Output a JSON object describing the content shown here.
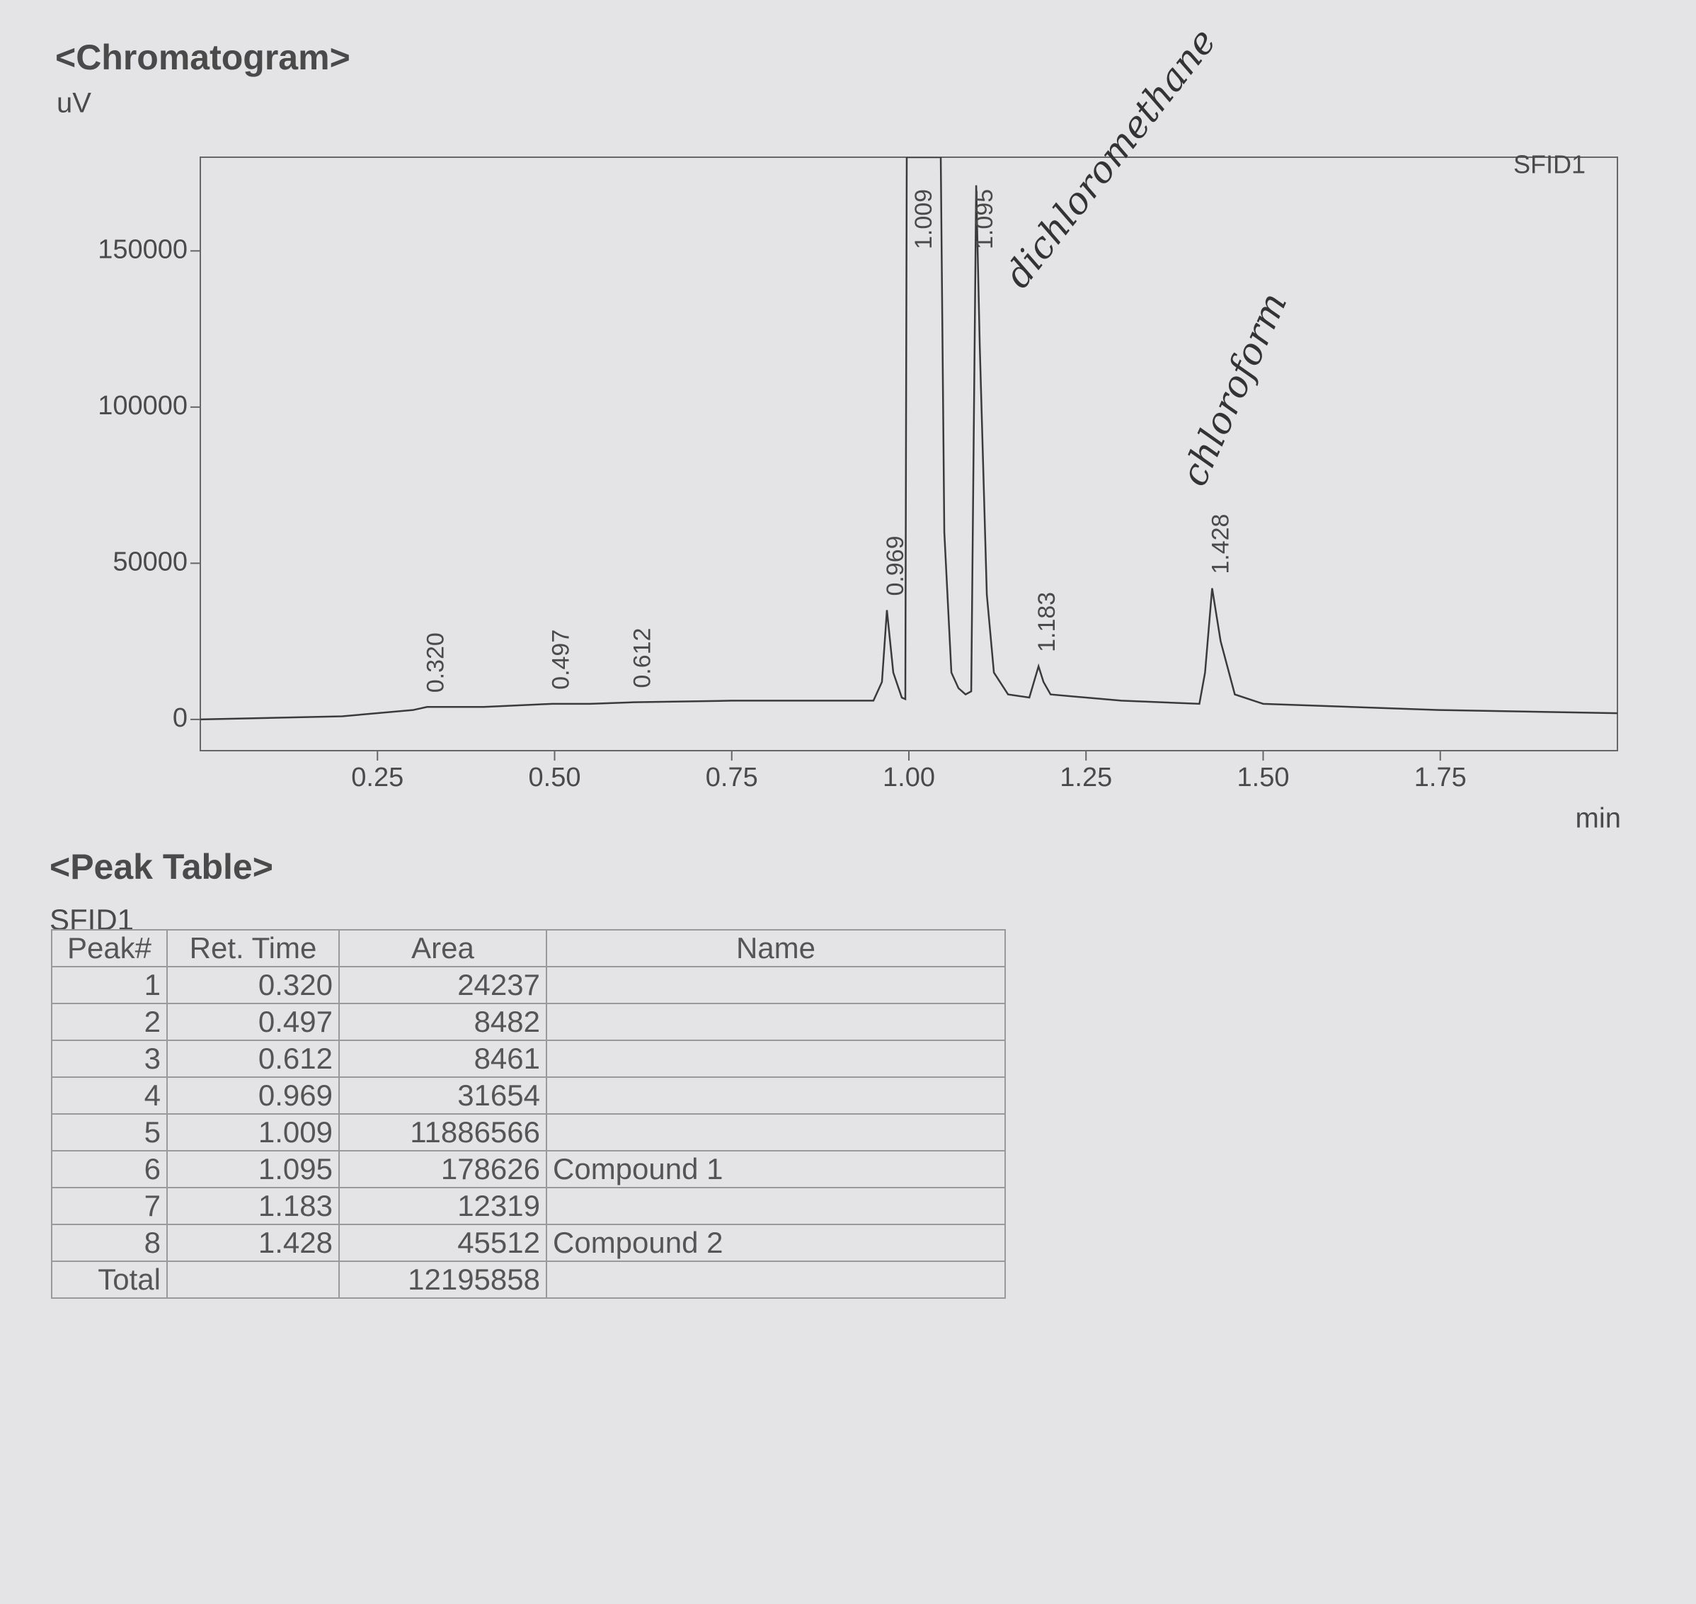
{
  "chart_data": {
    "type": "line",
    "title": "<Chromatogram>",
    "y_label": "uV",
    "x_label": "min",
    "x": [
      0,
      0.2,
      0.3,
      0.32,
      0.4,
      0.497,
      0.55,
      0.612,
      0.75,
      0.95,
      0.962,
      0.969,
      0.978,
      0.99,
      0.995,
      0.997,
      1.045,
      1.05,
      1.06,
      1.07,
      1.08,
      1.088,
      1.095,
      1.1,
      1.11,
      1.12,
      1.14,
      1.17,
      1.183,
      1.19,
      1.2,
      1.3,
      1.41,
      1.418,
      1.428,
      1.44,
      1.46,
      1.5,
      1.75,
      2.0
    ],
    "series": [
      {
        "name": "SFID1",
        "color": "#3a3a3a",
        "values": [
          0,
          1000,
          3000,
          4000,
          4000,
          5000,
          5000,
          5500,
          6000,
          6000,
          12000,
          35000,
          15000,
          7000,
          6500,
          180000,
          180000,
          60000,
          15000,
          10000,
          8000,
          9000,
          171000,
          120000,
          40000,
          15000,
          8000,
          7000,
          17000,
          12000,
          8000,
          6000,
          5000,
          15000,
          42000,
          25000,
          8000,
          5000,
          3000,
          2000
        ]
      }
    ],
    "xlim": [
      0,
      2.0
    ],
    "ylim": [
      -10000,
      180000
    ],
    "xticks": [
      0.25,
      {
        "value": 0.5,
        "label": "0.50"
      },
      0.75,
      {
        "value": 1.0,
        "label": "1.00"
      },
      1.25,
      {
        "value": 1.5,
        "label": "1.50"
      },
      1.75
    ],
    "yticks": [
      0,
      50000,
      100000,
      150000
    ],
    "peak_labels": [
      {
        "label": "0.320",
        "x": 0.32
      },
      {
        "label": "0.497",
        "x": 0.497
      },
      {
        "label": "0.612",
        "x": 0.612
      },
      {
        "label": "0.969",
        "x": 0.969
      },
      {
        "label": "1.009",
        "x": 1.009
      },
      {
        "label": "1.095",
        "x": 1.095
      },
      {
        "label": "1.183",
        "x": 1.183
      },
      {
        "label": "1.428",
        "x": 1.428
      }
    ],
    "handwritten": [
      "dichloromethane",
      "chloroform"
    ]
  },
  "table": {
    "title": "<Peak Table>",
    "detector": "SFID1",
    "columns": [
      "Peak#",
      "Ret. Time",
      "Area",
      "Name"
    ],
    "rows": [
      {
        "peak": 1,
        "ret_time": "0.320",
        "area": 24237
      },
      {
        "peak": 2,
        "ret_time": "0.497",
        "area": 8482
      },
      {
        "peak": 3,
        "ret_time": "0.612",
        "area": 8461
      },
      {
        "peak": 4,
        "ret_time": "0.969",
        "area": 31654
      },
      {
        "peak": 5,
        "ret_time": "1.009",
        "area": 11886566
      },
      {
        "peak": 6,
        "ret_time": "1.095",
        "area": 178626,
        "name": "Compound 1"
      },
      {
        "peak": 7,
        "ret_time": "1.183",
        "area": 12319
      },
      {
        "peak": 8,
        "ret_time": "1.428",
        "area": 45512,
        "name": "Compound 2"
      }
    ],
    "total": {
      "label": "Total",
      "area": 12195858
    }
  }
}
